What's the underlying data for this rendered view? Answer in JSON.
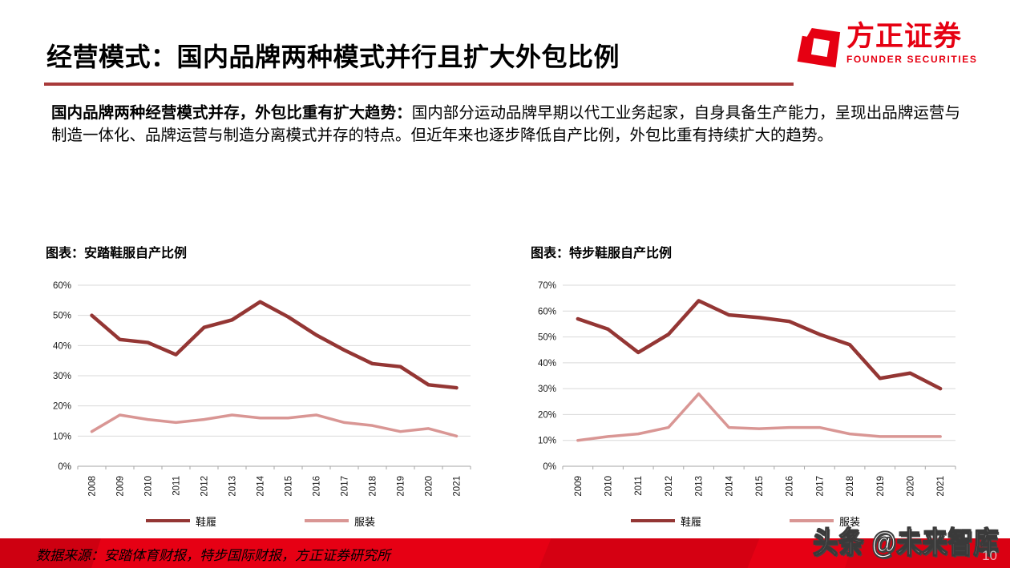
{
  "header": {
    "title": "经营模式：国内品牌两种模式并行且扩大外包比例",
    "logo": {
      "name_cn": "方正证券",
      "name_en": "FOUNDER SECURITIES"
    }
  },
  "intro": {
    "lead": "国内品牌两种经营模式并存，外包比重有扩大趋势：",
    "text": "国内部分运动品牌早期以代工业务起家，自身具备生产能力，呈现出品牌运营与制造一体化、品牌运营与制造分离模式并存的特点。但近年来也逐步降低自产比例，外包比重有持续扩大的趋势。"
  },
  "chart_data": [
    {
      "type": "line",
      "title": "图表：安踏鞋服自产比例",
      "categories": [
        "2008",
        "2009",
        "2010",
        "2011",
        "2012",
        "2013",
        "2014",
        "2015",
        "2016",
        "2017",
        "2018",
        "2019",
        "2020",
        "2021"
      ],
      "series": [
        {
          "name": "鞋履",
          "color": "#943634",
          "values": [
            50,
            42,
            41,
            37,
            46,
            48.5,
            54.5,
            49.5,
            43.5,
            38.5,
            34,
            33,
            27,
            26
          ]
        },
        {
          "name": "服装",
          "color": "#D99694",
          "values": [
            11.5,
            17,
            15.5,
            14.5,
            15.5,
            17,
            16,
            16,
            17,
            14.5,
            13.5,
            11.5,
            12.5,
            10
          ]
        }
      ],
      "ylabel_format": "percent",
      "ylim": [
        0,
        60
      ],
      "ytick_step": 10,
      "grid": true,
      "legend_position": "bottom"
    },
    {
      "type": "line",
      "title": "图表：特步鞋服自产比例",
      "categories": [
        "2009",
        "2010",
        "2011",
        "2012",
        "2013",
        "2014",
        "2015",
        "2016",
        "2017",
        "2018",
        "2019",
        "2020",
        "2021"
      ],
      "series": [
        {
          "name": "鞋履",
          "color": "#943634",
          "values": [
            57,
            53,
            44,
            51,
            64,
            58.5,
            57.5,
            56,
            51,
            47,
            34,
            36,
            30
          ]
        },
        {
          "name": "服装",
          "color": "#D99694",
          "values": [
            10,
            11.5,
            12.5,
            15,
            28,
            15,
            14.5,
            15,
            15,
            12.5,
            11.5,
            11.5,
            11.5
          ]
        }
      ],
      "ylabel_format": "percent",
      "ylim": [
        0,
        70
      ],
      "ytick_step": 10,
      "grid": true,
      "legend_position": "bottom"
    }
  ],
  "footer": {
    "source": "数据来源：安踏体育财报，特步国际财报，方正证券研究所",
    "watermark": "头条 @未来智库",
    "page_number": "10"
  },
  "colors": {
    "brand_red": "#E60012",
    "footer_red": "#E60014",
    "title_underline": "#A83A3A",
    "series_dark": "#943634",
    "series_light": "#D99694",
    "gridline": "#D9D9D9",
    "axis": "#A6A6A6",
    "tick_text": "#1a1a1a"
  }
}
